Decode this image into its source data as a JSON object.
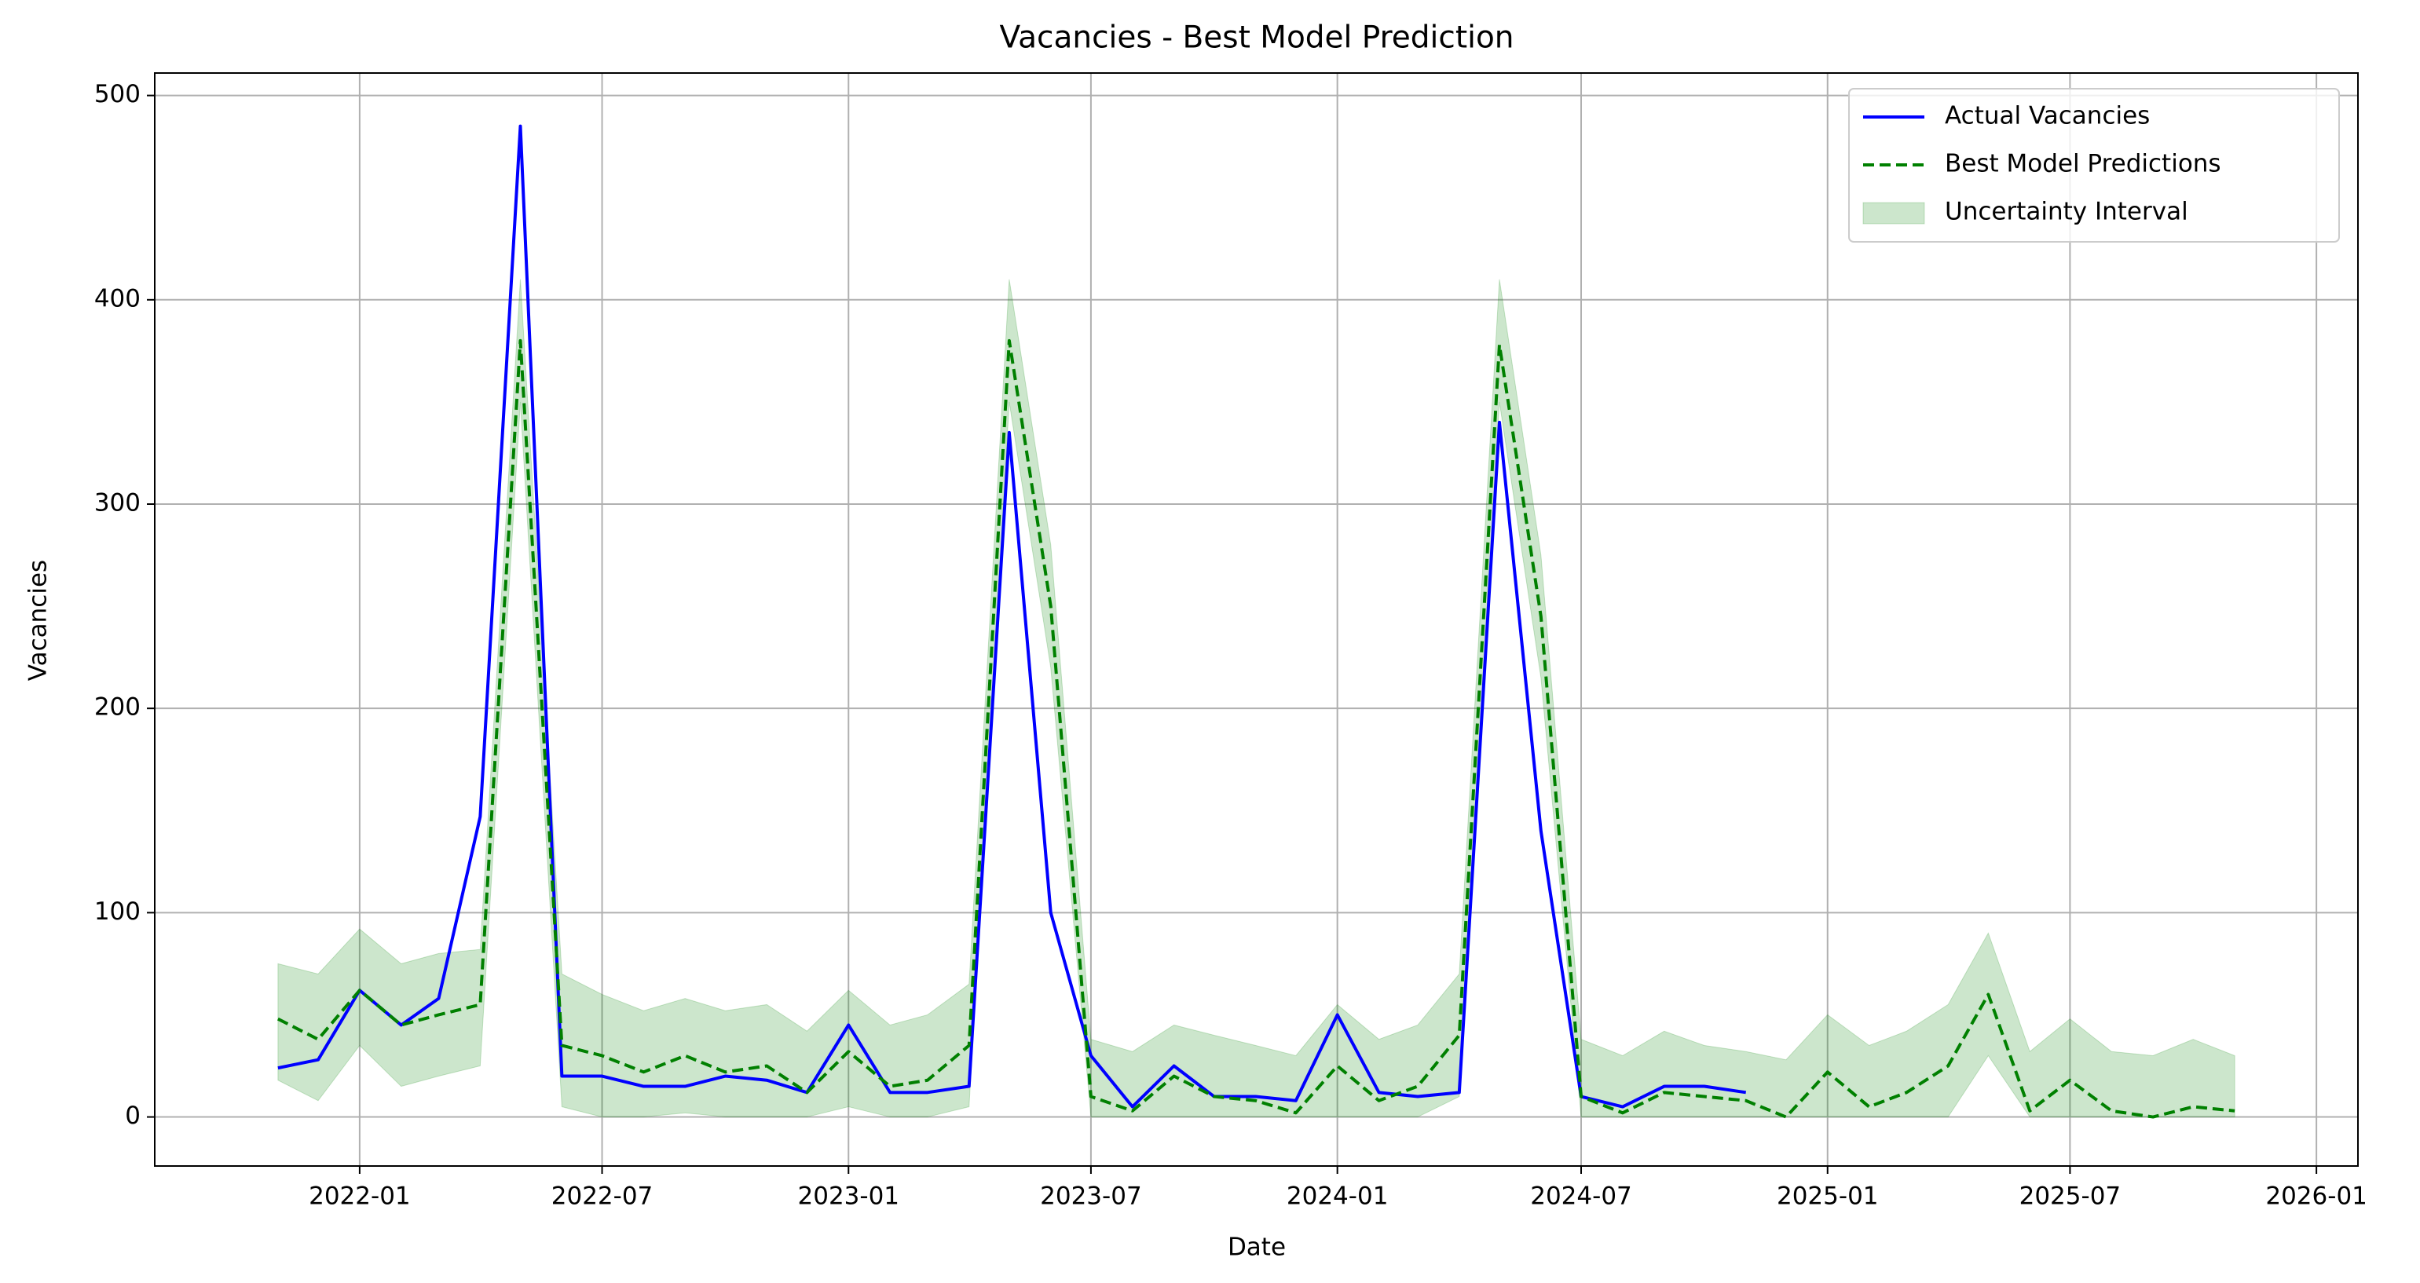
{
  "chart_data": {
    "type": "line",
    "title": "Vacancies - Best Model Prediction",
    "xlabel": "Date",
    "ylabel": "Vacancies",
    "x": [
      "2021-11",
      "2021-12",
      "2022-01",
      "2022-02",
      "2022-03",
      "2022-04",
      "2022-05",
      "2022-06",
      "2022-07",
      "2022-08",
      "2022-09",
      "2022-10",
      "2022-11",
      "2022-12",
      "2023-01",
      "2023-02",
      "2023-03",
      "2023-04",
      "2023-05",
      "2023-06",
      "2023-07",
      "2023-08",
      "2023-09",
      "2023-10",
      "2023-11",
      "2023-12",
      "2024-01",
      "2024-02",
      "2024-03",
      "2024-04",
      "2024-05",
      "2024-06",
      "2024-07",
      "2024-08",
      "2024-09",
      "2024-10",
      "2024-11",
      "2024-12",
      "2025-01",
      "2025-02",
      "2025-03",
      "2025-04",
      "2025-05",
      "2025-06",
      "2025-07",
      "2025-08",
      "2025-09",
      "2025-10",
      "2025-11"
    ],
    "series": [
      {
        "name": "Actual Vacancies",
        "color": "#0000ff",
        "dash": false,
        "values": [
          24,
          28,
          62,
          45,
          58,
          147,
          485,
          20,
          20,
          15,
          15,
          20,
          18,
          12,
          45,
          12,
          12,
          15,
          335,
          100,
          30,
          5,
          25,
          10,
          10,
          8,
          50,
          12,
          10,
          12,
          340,
          140,
          10,
          5,
          15,
          15,
          12,
          null,
          null,
          null,
          null,
          null,
          null,
          null,
          null,
          null,
          null,
          null,
          null
        ]
      },
      {
        "name": "Best Model Predictions",
        "color": "#008000",
        "dash": true,
        "values": [
          48,
          38,
          62,
          45,
          50,
          55,
          380,
          35,
          30,
          22,
          30,
          22,
          25,
          12,
          32,
          15,
          18,
          35,
          380,
          250,
          10,
          3,
          20,
          10,
          8,
          2,
          25,
          8,
          15,
          40,
          378,
          245,
          10,
          2,
          12,
          10,
          8,
          0,
          22,
          5,
          12,
          25,
          60,
          3,
          18,
          3,
          0,
          5,
          3
        ]
      }
    ],
    "band": {
      "name": "Uncertainty Interval",
      "color": "#008000",
      "lower": [
        18,
        8,
        35,
        15,
        20,
        25,
        350,
        5,
        0,
        0,
        2,
        0,
        0,
        0,
        5,
        0,
        0,
        5,
        350,
        220,
        0,
        0,
        0,
        0,
        0,
        0,
        0,
        0,
        0,
        10,
        350,
        215,
        0,
        0,
        0,
        0,
        0,
        0,
        0,
        0,
        0,
        0,
        30,
        0,
        0,
        0,
        0,
        0,
        0
      ],
      "upper": [
        75,
        70,
        92,
        75,
        80,
        82,
        410,
        70,
        60,
        52,
        58,
        52,
        55,
        42,
        62,
        45,
        50,
        65,
        410,
        280,
        38,
        32,
        45,
        40,
        35,
        30,
        55,
        38,
        45,
        70,
        410,
        275,
        38,
        30,
        42,
        35,
        32,
        28,
        50,
        35,
        42,
        55,
        90,
        32,
        48,
        32,
        30,
        38,
        30
      ]
    },
    "xlim": [
      "2021-08",
      "2026-02"
    ],
    "xticks": [
      "2022-01",
      "2022-07",
      "2023-01",
      "2023-07",
      "2024-01",
      "2024-07",
      "2025-01",
      "2025-07",
      "2026-01"
    ],
    "ylim": [
      -24,
      511
    ],
    "yticks": [
      0,
      100,
      200,
      300,
      400,
      500
    ],
    "grid": true,
    "legend": "upper right"
  }
}
